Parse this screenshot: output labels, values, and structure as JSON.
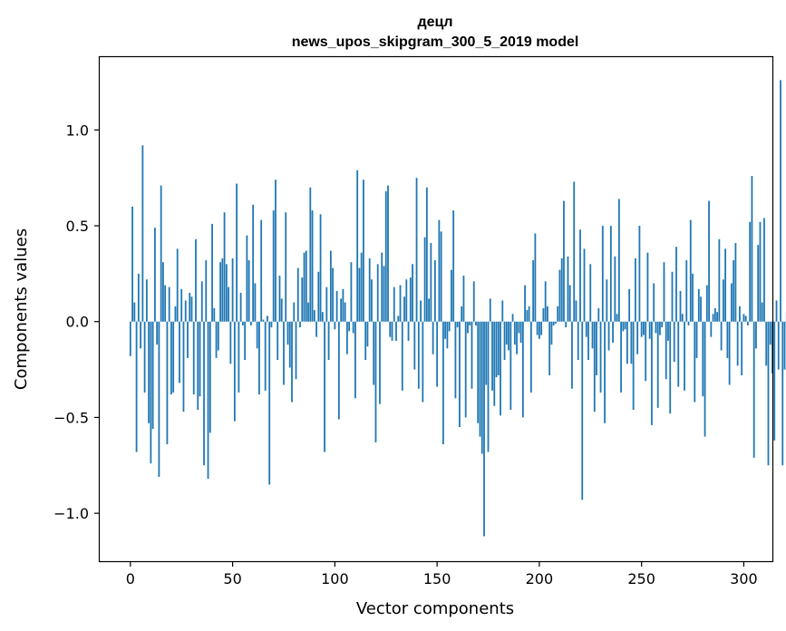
{
  "chart_data": {
    "type": "bar",
    "title": "децл",
    "subtitle": "news_upos_skipgram_300_5_2019 model",
    "xlabel": "Vector components",
    "ylabel": "Components values",
    "xlim": [
      -15,
      314
    ],
    "ylim": [
      -1.25,
      1.38
    ],
    "xticks": [
      0,
      50,
      100,
      150,
      200,
      250,
      300
    ],
    "xtick_labels": [
      "0",
      "50",
      "100",
      "150",
      "200",
      "250",
      "300"
    ],
    "yticks": [
      -1.0,
      -0.5,
      0.0,
      0.5,
      1.0
    ],
    "ytick_labels": [
      "−1.0",
      "−0.5",
      "0.0",
      "0.5",
      "1.0"
    ],
    "bar_color": "#1f77b4",
    "grid": false,
    "values": [
      -0.18,
      0.6,
      0.1,
      -0.68,
      0.25,
      -0.14,
      0.92,
      -0.37,
      0.22,
      -0.53,
      -0.74,
      -0.56,
      0.49,
      -0.12,
      -0.81,
      0.71,
      0.31,
      0.19,
      -0.64,
      0.18,
      -0.38,
      -0.37,
      0.08,
      0.38,
      -0.32,
      0.17,
      -0.47,
      0.11,
      -0.19,
      0.15,
      0.13,
      -0.38,
      0.43,
      -0.46,
      -0.39,
      0.21,
      -0.75,
      0.32,
      -0.82,
      -0.58,
      0.51,
      0.07,
      -0.19,
      -0.15,
      0.31,
      0.33,
      0.57,
      0.3,
      0.18,
      -0.22,
      0.33,
      -0.52,
      0.72,
      -0.37,
      0.15,
      -0.02,
      -0.2,
      0.45,
      0.32,
      -0.02,
      0.61,
      0.2,
      -0.14,
      -0.38,
      0.53,
      0.01,
      -0.36,
      0.03,
      -0.85,
      -0.03,
      0.58,
      0.74,
      -0.2,
      0.24,
      0.12,
      -0.33,
      0.57,
      -0.12,
      -0.24,
      -0.42,
      0.1,
      -0.3,
      0.28,
      -0.03,
      0.23,
      0.36,
      0.37,
      0.1,
      0.7,
      0.58,
      0.06,
      -0.08,
      0.26,
      0.56,
      0.05,
      -0.68,
      0.18,
      -0.2,
      0.37,
      0.28,
      -0.04,
      0.16,
      -0.51,
      0.12,
      0.17,
      0.1,
      -0.17,
      -0.05,
      0.31,
      -0.06,
      -0.4,
      0.79,
      0.28,
      0.36,
      0.74,
      -0.2,
      -0.13,
      0.33,
      0.22,
      -0.33,
      -0.63,
      0.3,
      -0.43,
      0.36,
      0.29,
      0.68,
      0.71,
      -0.08,
      -0.1,
      0.18,
      -0.1,
      0.03,
      0.19,
      -0.36,
      0.13,
      0.22,
      -0.1,
      0.23,
      0.3,
      -0.25,
      0.75,
      -0.35,
      0.11,
      -0.42,
      0.44,
      0.7,
      0.12,
      0.41,
      -0.17,
      0.32,
      -0.34,
      0.53,
      0.47,
      -0.64,
      -0.09,
      -0.14,
      -0.05,
      0.27,
      0.58,
      -0.4,
      -0.03,
      -0.55,
      0.08,
      0.24,
      -0.5,
      -0.06,
      -0.02,
      -0.35,
      0.21,
      -0.02,
      -0.53,
      -0.6,
      -0.69,
      -1.12,
      -0.33,
      -0.68,
      0.12,
      -0.36,
      -0.44,
      -0.29,
      -0.28,
      -0.49,
      0.11,
      -0.2,
      -0.12,
      -0.15,
      -0.46,
      0.04,
      -0.12,
      -0.17,
      -0.06,
      -0.11,
      -0.5,
      0.19,
      0.06,
      0.08,
      -0.37,
      0.32,
      0.46,
      -0.07,
      -0.09,
      -0.07,
      0.07,
      0.21,
      0.08,
      -0.28,
      -0.12,
      -0.02,
      -0.01,
      0.08,
      0.27,
      0.33,
      0.63,
      -0.03,
      0.34,
      0.19,
      -0.35,
      0.73,
      0.11,
      -0.2,
      0.48,
      -0.93,
      0.38,
      -0.08,
      -0.2,
      0.3,
      -0.14,
      -0.47,
      -0.28,
      0.07,
      -0.37,
      0.5,
      -0.53,
      0.22,
      -0.15,
      0.5,
      -0.11,
      0.34,
      0.04,
      0.64,
      -0.37,
      -0.05,
      -0.04,
      -0.22,
      0.17,
      -0.22,
      -0.46,
      0.33,
      -0.17,
      0.5,
      -0.08,
      -0.07,
      -0.31,
      0.36,
      -0.09,
      -0.54,
      0.2,
      -0.06,
      -0.45,
      -0.07,
      -0.03,
      0.31,
      -0.3,
      -0.1,
      -0.48,
      0.26,
      -0.21,
      0.39,
      -0.34,
      0.16,
      0.04,
      -0.36,
      0.32,
      -0.02,
      0.53,
      0.25,
      -0.42,
      -0.19,
      0.17,
      0.13,
      -0.39,
      -0.6,
      0.19,
      0.63,
      -0.08,
      0.04,
      0.07,
      0.05,
      0.43,
      -0.15,
      0.22,
      0.38,
      -0.19,
      -0.33,
      0.2,
      0.32,
      0.41,
      -0.23,
      0.08,
      -0.28,
      0.04,
      0.03,
      -0.02,
      0.52,
      0.76,
      -0.71,
      -0.14,
      0.4,
      0.52,
      0.1,
      0.54,
      -0.23,
      -0.75,
      -0.12,
      -0.27,
      -0.62,
      0.11,
      -0.25,
      1.26,
      -0.75,
      -0.25,
      0.05,
      -0.18,
      0.46
    ]
  }
}
